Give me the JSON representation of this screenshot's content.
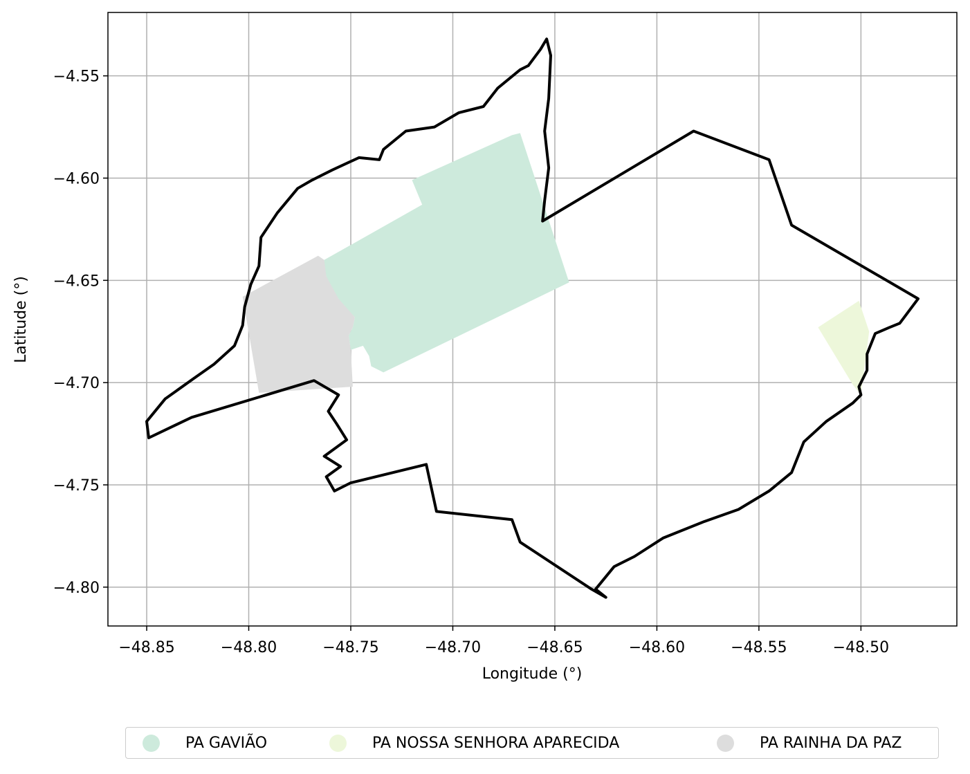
{
  "chart_data": {
    "type": "map",
    "title": "",
    "xlabel": "Longitude (°)",
    "ylabel": "Latitude (°)",
    "xlim": [
      -48.869,
      -48.453
    ],
    "ylim": [
      -4.819,
      -4.519
    ],
    "grid": true,
    "x_ticks": [
      -48.85,
      -48.8,
      -48.75,
      -48.7,
      -48.65,
      -48.6,
      -48.55,
      -48.5
    ],
    "x_tick_labels": [
      "−48.85",
      "−48.80",
      "−48.75",
      "−48.70",
      "−48.65",
      "−48.60",
      "−48.55",
      "−48.50"
    ],
    "y_ticks": [
      -4.55,
      -4.6,
      -4.65,
      -4.7,
      -4.75,
      -4.8
    ],
    "y_tick_labels": [
      "−4.55",
      "−4.60",
      "−4.65",
      "−4.70",
      "−4.75",
      "−4.80"
    ],
    "legend_position": "bottom-center",
    "areas": [
      {
        "name": "PA GAVIÃO",
        "color": "#cdeadc",
        "coords": [
          [
            -48.72,
            -4.601
          ],
          [
            -48.671,
            -4.579
          ],
          [
            -48.667,
            -4.578
          ],
          [
            -48.643,
            -4.651
          ],
          [
            -48.734,
            -4.695
          ],
          [
            -48.74,
            -4.692
          ],
          [
            -48.741,
            -4.687
          ],
          [
            -48.744,
            -4.682
          ],
          [
            -48.75,
            -4.684
          ],
          [
            -48.751,
            -4.677
          ],
          [
            -48.749,
            -4.673
          ],
          [
            -48.748,
            -4.668
          ],
          [
            -48.751,
            -4.665
          ],
          [
            -48.754,
            -4.663
          ],
          [
            -48.756,
            -4.659
          ],
          [
            -48.76,
            -4.654
          ],
          [
            -48.762,
            -4.648
          ],
          [
            -48.763,
            -4.644
          ],
          [
            -48.763,
            -4.64
          ],
          [
            -48.715,
            -4.613
          ]
        ]
      },
      {
        "name": "PA NOSSA SENHORA APARECIDA",
        "color": "#edf7da",
        "coords": [
          [
            -48.521,
            -4.673
          ],
          [
            -48.501,
            -4.66
          ],
          [
            -48.496,
            -4.675
          ],
          [
            -48.5,
            -4.706
          ],
          [
            -48.504,
            -4.701
          ],
          [
            -48.521,
            -4.673
          ]
        ]
      },
      {
        "name": "PA RAINHA DA PAZ",
        "color": "#dddddd",
        "coords": [
          [
            -48.803,
            -4.658
          ],
          [
            -48.766,
            -4.638
          ],
          [
            -48.763,
            -4.64
          ],
          [
            -48.762,
            -4.648
          ],
          [
            -48.756,
            -4.659
          ],
          [
            -48.748,
            -4.668
          ],
          [
            -48.749,
            -4.673
          ],
          [
            -48.751,
            -4.677
          ],
          [
            -48.75,
            -4.684
          ],
          [
            -48.749,
            -4.702
          ],
          [
            -48.795,
            -4.705
          ],
          [
            -48.803,
            -4.658
          ]
        ]
      }
    ],
    "boundary": {
      "color": "#000000",
      "coords": [
        [
          -48.849,
          -4.727
        ],
        [
          -48.85,
          -4.719
        ],
        [
          -48.841,
          -4.708
        ],
        [
          -48.827,
          -4.698
        ],
        [
          -48.817,
          -4.691
        ],
        [
          -48.807,
          -4.682
        ],
        [
          -48.803,
          -4.672
        ],
        [
          -48.802,
          -4.663
        ],
        [
          -48.799,
          -4.652
        ],
        [
          -48.795,
          -4.643
        ],
        [
          -48.794,
          -4.629
        ],
        [
          -48.786,
          -4.617
        ],
        [
          -48.776,
          -4.605
        ],
        [
          -48.769,
          -4.601
        ],
        [
          -48.759,
          -4.596
        ],
        [
          -48.746,
          -4.59
        ],
        [
          -48.736,
          -4.591
        ],
        [
          -48.734,
          -4.586
        ],
        [
          -48.723,
          -4.577
        ],
        [
          -48.709,
          -4.575
        ],
        [
          -48.697,
          -4.568
        ],
        [
          -48.685,
          -4.565
        ],
        [
          -48.678,
          -4.556
        ],
        [
          -48.667,
          -4.547
        ],
        [
          -48.663,
          -4.545
        ],
        [
          -48.657,
          -4.537
        ],
        [
          -48.654,
          -4.532
        ],
        [
          -48.652,
          -4.54
        ],
        [
          -48.653,
          -4.561
        ],
        [
          -48.655,
          -4.577
        ],
        [
          -48.653,
          -4.595
        ],
        [
          -48.655,
          -4.611
        ],
        [
          -48.656,
          -4.621
        ],
        [
          -48.582,
          -4.577
        ],
        [
          -48.545,
          -4.591
        ],
        [
          -48.534,
          -4.623
        ],
        [
          -48.472,
          -4.659
        ],
        [
          -48.475,
          -4.663
        ],
        [
          -48.481,
          -4.671
        ],
        [
          -48.486,
          -4.673
        ],
        [
          -48.493,
          -4.676
        ],
        [
          -48.497,
          -4.686
        ],
        [
          -48.497,
          -4.694
        ],
        [
          -48.501,
          -4.702
        ],
        [
          -48.5,
          -4.706
        ],
        [
          -48.504,
          -4.71
        ],
        [
          -48.517,
          -4.719
        ],
        [
          -48.528,
          -4.729
        ],
        [
          -48.534,
          -4.744
        ],
        [
          -48.545,
          -4.753
        ],
        [
          -48.56,
          -4.762
        ],
        [
          -48.577,
          -4.768
        ],
        [
          -48.597,
          -4.776
        ],
        [
          -48.611,
          -4.785
        ],
        [
          -48.621,
          -4.79
        ],
        [
          -48.63,
          -4.801
        ],
        [
          -48.625,
          -4.805
        ],
        [
          -48.632,
          -4.801
        ],
        [
          -48.667,
          -4.778
        ],
        [
          -48.671,
          -4.767
        ],
        [
          -48.708,
          -4.763
        ],
        [
          -48.713,
          -4.74
        ],
        [
          -48.75,
          -4.749
        ],
        [
          -48.758,
          -4.753
        ],
        [
          -48.762,
          -4.746
        ],
        [
          -48.755,
          -4.741
        ],
        [
          -48.763,
          -4.736
        ],
        [
          -48.752,
          -4.728
        ],
        [
          -48.757,
          -4.72
        ],
        [
          -48.761,
          -4.714
        ],
        [
          -48.756,
          -4.706
        ],
        [
          -48.768,
          -4.699
        ],
        [
          -48.828,
          -4.717
        ],
        [
          -48.849,
          -4.727
        ]
      ]
    }
  }
}
